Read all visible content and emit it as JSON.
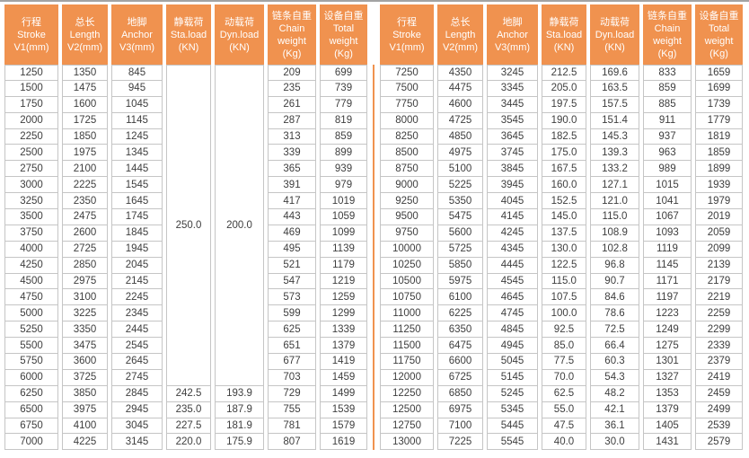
{
  "colors": {
    "header_bg": "#f0924f",
    "header_text": "#ffffff",
    "cell_border": "#c5c5c5",
    "cell_text": "#3e3e3e",
    "top_line": "#a3a3a3",
    "divider": "#f0924f"
  },
  "columns": [
    {
      "lines": [
        "行程",
        "Stroke",
        "V1(mm)"
      ]
    },
    {
      "lines": [
        "总长",
        "Length",
        "V2(mm)"
      ]
    },
    {
      "lines": [
        "地脚",
        "Anchor",
        "V3(mm)"
      ]
    },
    {
      "lines": [
        "静载荷",
        "Sta.load",
        "(KN)"
      ]
    },
    {
      "lines": [
        "动载荷",
        "Dyn.load",
        "(KN)"
      ]
    },
    {
      "lines": [
        "链条自重",
        "Chain",
        "weight",
        "(Kg)"
      ]
    },
    {
      "lines": [
        "设备自重",
        "Total",
        "weight",
        "(Kg)"
      ]
    }
  ],
  "left_table": {
    "merged": {
      "span": 20,
      "sta_load": "250.0",
      "dyn_load": "200.0"
    },
    "rows": [
      [
        "1250",
        "1350",
        "845",
        "",
        "",
        "209",
        "699"
      ],
      [
        "1500",
        "1475",
        "945",
        "",
        "",
        "235",
        "739"
      ],
      [
        "1750",
        "1600",
        "1045",
        "",
        "",
        "261",
        "779"
      ],
      [
        "2000",
        "1725",
        "1145",
        "",
        "",
        "287",
        "819"
      ],
      [
        "2250",
        "1850",
        "1245",
        "",
        "",
        "313",
        "859"
      ],
      [
        "2500",
        "1975",
        "1345",
        "",
        "",
        "339",
        "899"
      ],
      [
        "2750",
        "2100",
        "1445",
        "",
        "",
        "365",
        "939"
      ],
      [
        "3000",
        "2225",
        "1545",
        "",
        "",
        "391",
        "979"
      ],
      [
        "3250",
        "2350",
        "1645",
        "",
        "",
        "417",
        "1019"
      ],
      [
        "3500",
        "2475",
        "1745",
        "",
        "",
        "443",
        "1059"
      ],
      [
        "3750",
        "2600",
        "1845",
        "",
        "",
        "469",
        "1099"
      ],
      [
        "4000",
        "2725",
        "1945",
        "",
        "",
        "495",
        "1139"
      ],
      [
        "4250",
        "2850",
        "2045",
        "",
        "",
        "521",
        "1179"
      ],
      [
        "4500",
        "2975",
        "2145",
        "",
        "",
        "547",
        "1219"
      ],
      [
        "4750",
        "3100",
        "2245",
        "",
        "",
        "573",
        "1259"
      ],
      [
        "5000",
        "3225",
        "2345",
        "",
        "",
        "599",
        "1299"
      ],
      [
        "5250",
        "3350",
        "2445",
        "",
        "",
        "625",
        "1339"
      ],
      [
        "5500",
        "3475",
        "2545",
        "",
        "",
        "651",
        "1379"
      ],
      [
        "5750",
        "3600",
        "2645",
        "",
        "",
        "677",
        "1419"
      ],
      [
        "6000",
        "3725",
        "2745",
        "",
        "",
        "703",
        "1459"
      ],
      [
        "6250",
        "3850",
        "2845",
        "242.5",
        "193.9",
        "729",
        "1499"
      ],
      [
        "6500",
        "3975",
        "2945",
        "235.0",
        "187.9",
        "755",
        "1539"
      ],
      [
        "6750",
        "4100",
        "3045",
        "227.5",
        "181.9",
        "781",
        "1579"
      ],
      [
        "7000",
        "4225",
        "3145",
        "220.0",
        "175.9",
        "807",
        "1619"
      ]
    ]
  },
  "right_table": {
    "rows": [
      [
        "7250",
        "4350",
        "3245",
        "212.5",
        "169.6",
        "833",
        "1659"
      ],
      [
        "7500",
        "4475",
        "3345",
        "205.0",
        "163.5",
        "859",
        "1699"
      ],
      [
        "7750",
        "4600",
        "3445",
        "197.5",
        "157.5",
        "885",
        "1739"
      ],
      [
        "8000",
        "4725",
        "3545",
        "190.0",
        "151.4",
        "911",
        "1779"
      ],
      [
        "8250",
        "4850",
        "3645",
        "182.5",
        "145.3",
        "937",
        "1819"
      ],
      [
        "8500",
        "4975",
        "3745",
        "175.0",
        "139.3",
        "963",
        "1859"
      ],
      [
        "8750",
        "5100",
        "3845",
        "167.5",
        "133.2",
        "989",
        "1899"
      ],
      [
        "9000",
        "5225",
        "3945",
        "160.0",
        "127.1",
        "1015",
        "1939"
      ],
      [
        "9250",
        "5350",
        "4045",
        "152.5",
        "121.0",
        "1041",
        "1979"
      ],
      [
        "9500",
        "5475",
        "4145",
        "145.0",
        "115.0",
        "1067",
        "2019"
      ],
      [
        "9750",
        "5600",
        "4245",
        "137.5",
        "108.9",
        "1093",
        "2059"
      ],
      [
        "10000",
        "5725",
        "4345",
        "130.0",
        "102.8",
        "1119",
        "2099"
      ],
      [
        "10250",
        "5850",
        "4445",
        "122.5",
        "96.8",
        "1145",
        "2139"
      ],
      [
        "10500",
        "5975",
        "4545",
        "115.0",
        "90.7",
        "1171",
        "2179"
      ],
      [
        "10750",
        "6100",
        "4645",
        "107.5",
        "84.6",
        "1197",
        "2219"
      ],
      [
        "11000",
        "6225",
        "4745",
        "100.0",
        "78.6",
        "1223",
        "2259"
      ],
      [
        "11250",
        "6350",
        "4845",
        "92.5",
        "72.5",
        "1249",
        "2299"
      ],
      [
        "11500",
        "6475",
        "4945",
        "85.0",
        "66.4",
        "1275",
        "2339"
      ],
      [
        "11750",
        "6600",
        "5045",
        "77.5",
        "60.3",
        "1301",
        "2379"
      ],
      [
        "12000",
        "6725",
        "5145",
        "70.0",
        "54.3",
        "1327",
        "2419"
      ],
      [
        "12250",
        "6850",
        "5245",
        "62.5",
        "48.2",
        "1353",
        "2459"
      ],
      [
        "12500",
        "6975",
        "5345",
        "55.0",
        "42.1",
        "1379",
        "2499"
      ],
      [
        "12750",
        "7100",
        "5445",
        "47.5",
        "36.1",
        "1405",
        "2539"
      ],
      [
        "13000",
        "7225",
        "5545",
        "40.0",
        "30.0",
        "1431",
        "2579"
      ]
    ]
  }
}
